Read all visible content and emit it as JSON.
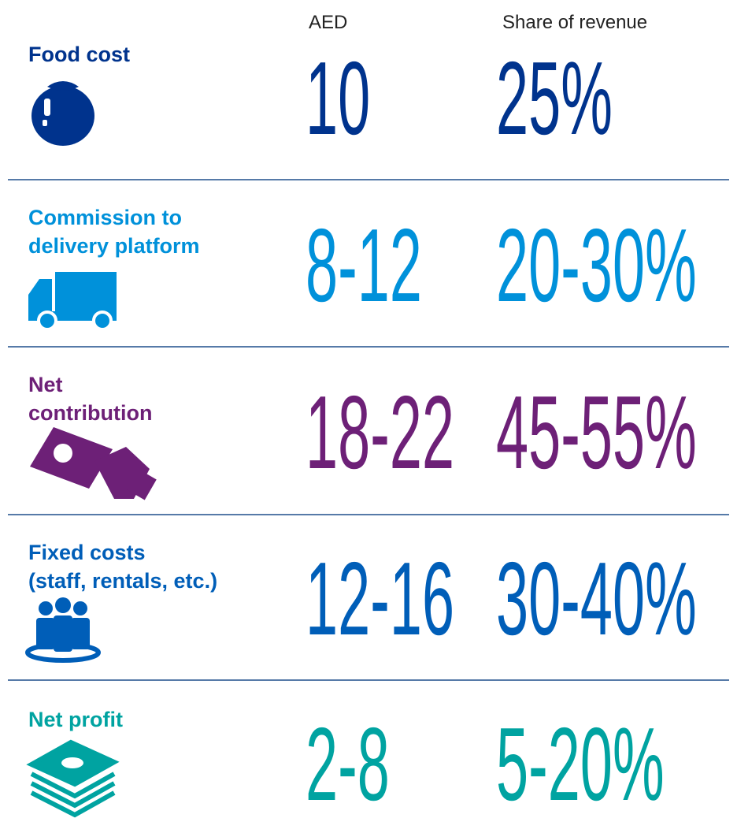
{
  "header": {
    "aed": "AED",
    "share": "Share of revenue"
  },
  "rows": [
    {
      "label": [
        "Food cost"
      ],
      "aed": "10",
      "share": "25%",
      "color": "#00338d"
    },
    {
      "label": [
        "Commission to",
        "delivery platform"
      ],
      "aed": "8-12",
      "share": "20-30%",
      "color": "#0091da"
    },
    {
      "label": [
        "Net",
        "contribution"
      ],
      "aed": "18-22",
      "share": "45-55%",
      "color": "#6d2077"
    },
    {
      "label": [
        "Fixed costs",
        "(staff, rentals, etc.)"
      ],
      "aed": "12-16",
      "share": "30-40%",
      "color": "#005eb8"
    },
    {
      "label": [
        "Net profit"
      ],
      "aed": "2-8",
      "share": "5-20%",
      "color": "#00a3a1"
    }
  ]
}
